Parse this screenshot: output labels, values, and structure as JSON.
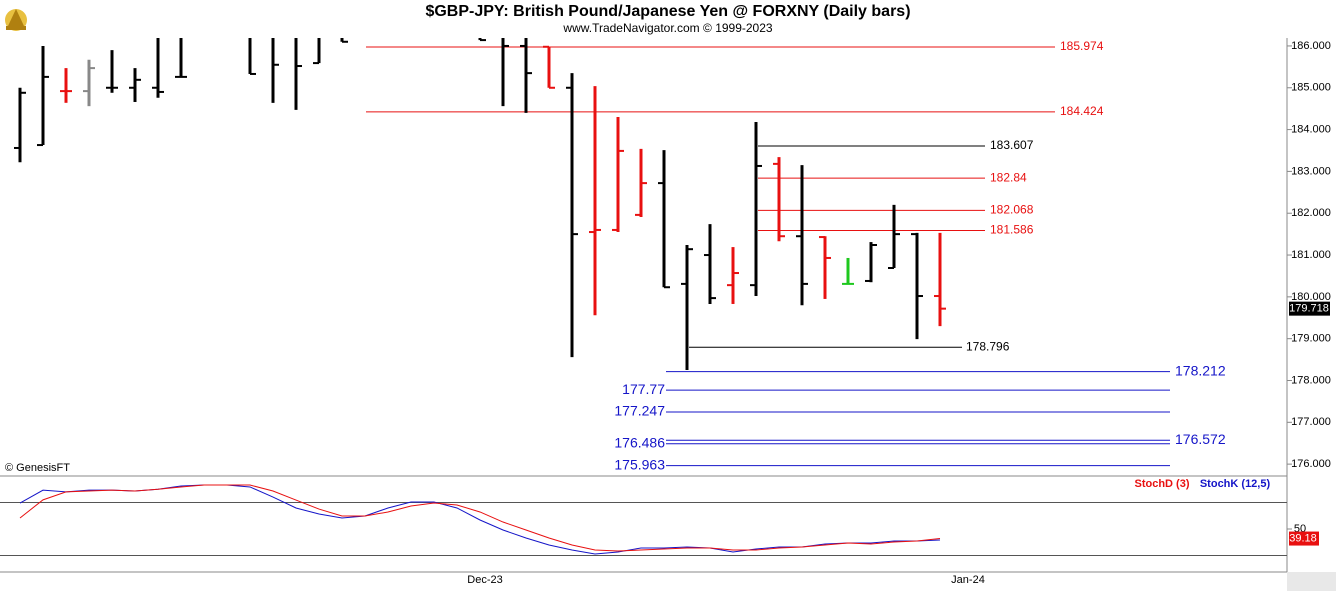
{
  "chart_data": [
    {
      "type": "ohlc",
      "title": "$GBP-JPY:  British Pound/Japanese Yen @ FORXNY  (Daily bars)",
      "subtitle": "www.TradeNavigator.com © 1999-2023",
      "watermark": "© GenesisFT",
      "categories": [
        null,
        null,
        null,
        null,
        null,
        null,
        null,
        null,
        null,
        null,
        null,
        null,
        null,
        null,
        null,
        null,
        null,
        null,
        null,
        null,
        "Dec-23",
        null,
        null,
        null,
        null,
        null,
        null,
        null,
        null,
        null,
        null,
        null,
        null,
        null,
        null,
        null,
        null,
        null,
        null,
        null,
        null,
        "Jan-24"
      ],
      "open": [
        183.56,
        183.63,
        184.92,
        184.92,
        185.0,
        185.0,
        185.0,
        185.26,
        null,
        null,
        186.4,
        186.3,
        186.3,
        185.59,
        186.3,
        null,
        null,
        null,
        null,
        null,
        186.3,
        186.3,
        186.0,
        185.98,
        185.0,
        181.55,
        181.6,
        181.96,
        182.72,
        180.31,
        181.0,
        180.28,
        180.28,
        183.18,
        181.45,
        181.43,
        180.31,
        180.38,
        180.69,
        181.5,
        180.02,
        null
      ],
      "high": [
        185.0,
        186.0,
        185.47,
        185.67,
        185.9,
        185.47,
        186.5,
        186.5,
        null,
        null,
        186.5,
        186.5,
        186.6,
        186.5,
        186.5,
        null,
        null,
        null,
        null,
        null,
        186.6,
        186.6,
        186.5,
        185.98,
        185.35,
        185.04,
        184.3,
        183.54,
        183.51,
        181.24,
        181.74,
        181.19,
        184.18,
        183.34,
        183.15,
        181.45,
        180.93,
        181.31,
        182.2,
        181.53,
        181.53,
        null
      ],
      "low": [
        183.22,
        183.63,
        184.64,
        184.56,
        184.88,
        184.66,
        184.76,
        185.26,
        null,
        null,
        185.33,
        184.64,
        184.47,
        185.59,
        186.1,
        null,
        null,
        null,
        null,
        null,
        186.14,
        184.56,
        184.4,
        185.0,
        178.56,
        179.56,
        181.55,
        181.91,
        180.23,
        178.25,
        179.83,
        179.83,
        180.02,
        181.33,
        179.8,
        179.95,
        180.31,
        180.35,
        180.69,
        178.99,
        179.3,
        null
      ],
      "close": [
        184.88,
        185.26,
        184.92,
        185.47,
        185.0,
        185.19,
        184.9,
        185.26,
        null,
        null,
        185.33,
        185.55,
        185.52,
        186.3,
        186.1,
        null,
        null,
        null,
        null,
        null,
        186.14,
        186.0,
        185.35,
        185.0,
        181.5,
        181.6,
        183.49,
        182.72,
        180.23,
        181.14,
        179.97,
        180.57,
        183.13,
        181.45,
        180.31,
        180.93,
        180.31,
        181.24,
        181.5,
        180.02,
        179.718,
        null
      ],
      "colors": [
        "#000",
        "#000",
        "#e81010",
        "#888",
        "#000",
        "#000",
        "#000",
        "#000",
        null,
        null,
        "#000",
        "#000",
        "#000",
        "#000",
        "#000",
        null,
        null,
        null,
        null,
        null,
        "#000",
        "#000",
        "#000",
        "#e81010",
        "#000",
        "#e81010",
        "#e81010",
        "#e81010",
        "#000",
        "#000",
        "#000",
        "#e81010",
        "#000",
        "#e81010",
        "#000",
        "#e81010",
        "#1ec81e",
        "#000",
        "#000",
        "#000",
        "#e81010",
        null
      ],
      "last_price": 179.718,
      "ylim": [
        175.74,
        186.19
      ],
      "yticks": [
        {
          "value": 176,
          "label": "176.000"
        },
        {
          "value": 177,
          "label": "177.000"
        },
        {
          "value": 178,
          "label": "178.000"
        },
        {
          "value": 179,
          "label": "179.000"
        },
        {
          "value": 180,
          "label": "180.000"
        },
        {
          "value": 181,
          "label": "181.000"
        },
        {
          "value": 182,
          "label": "182.000"
        },
        {
          "value": 183,
          "label": "183.000"
        },
        {
          "value": 184,
          "label": "184.000"
        },
        {
          "value": 185,
          "label": "185.000"
        },
        {
          "value": 186,
          "label": "186.000"
        }
      ],
      "levels": [
        {
          "value": 185.974,
          "color": "#e81010"
        },
        {
          "value": 184.424,
          "color": "#e81010"
        },
        {
          "value": 183.607,
          "color": "#000"
        },
        {
          "value": 182.84,
          "color": "#e81010"
        },
        {
          "value": 182.068,
          "color": "#e81010"
        },
        {
          "value": 181.586,
          "color": "#e81010"
        },
        {
          "value": 178.796,
          "color": "#000"
        },
        {
          "value": 178.212,
          "color": "#1515c8"
        },
        {
          "value": 177.77,
          "color": "#1515c8"
        },
        {
          "value": 177.247,
          "color": "#1515c8"
        },
        {
          "value": 176.572,
          "color": "#1515c8"
        },
        {
          "value": 176.486,
          "color": "#1515c8"
        },
        {
          "value": 175.963,
          "color": "#1515c8"
        }
      ]
    },
    {
      "type": "line",
      "series": [
        {
          "name": "StochD (3)",
          "color": "#e81010",
          "values": [
            62.5,
            83,
            92,
            93,
            94,
            93,
            95,
            97.6,
            99.8,
            99.8,
            99.8,
            93,
            82.8,
            72.6,
            64.7,
            64.7,
            69.3,
            76,
            79.4,
            77.2,
            69.3,
            57.9,
            48.9,
            39.8,
            31.9,
            26.2,
            25.1,
            26.2,
            27.3,
            28.5,
            28.5,
            26.2,
            26.2,
            28.5,
            29.6,
            31.9,
            34.1,
            33,
            35.3,
            36.4,
            39.18,
            null
          ]
        },
        {
          "name": "StochK (12,5)",
          "color": "#1515c8",
          "values": [
            79.4,
            94,
            92,
            94,
            94,
            93,
            95,
            98.7,
            99.8,
            99.8,
            97.6,
            86.2,
            73.8,
            67,
            62.5,
            64.7,
            73.8,
            80.6,
            80.6,
            73.8,
            60.2,
            48.9,
            39.8,
            31.9,
            26.2,
            21.7,
            24,
            28.5,
            28.5,
            29.6,
            28.5,
            24,
            27.3,
            29.6,
            29.6,
            33,
            34.1,
            34.1,
            36.4,
            36.4,
            37.5,
            null
          ]
        }
      ],
      "ylim": [
        1.3,
        108.9
      ],
      "yticks": [
        50
      ],
      "reference_lines": [
        20,
        80
      ]
    }
  ]
}
